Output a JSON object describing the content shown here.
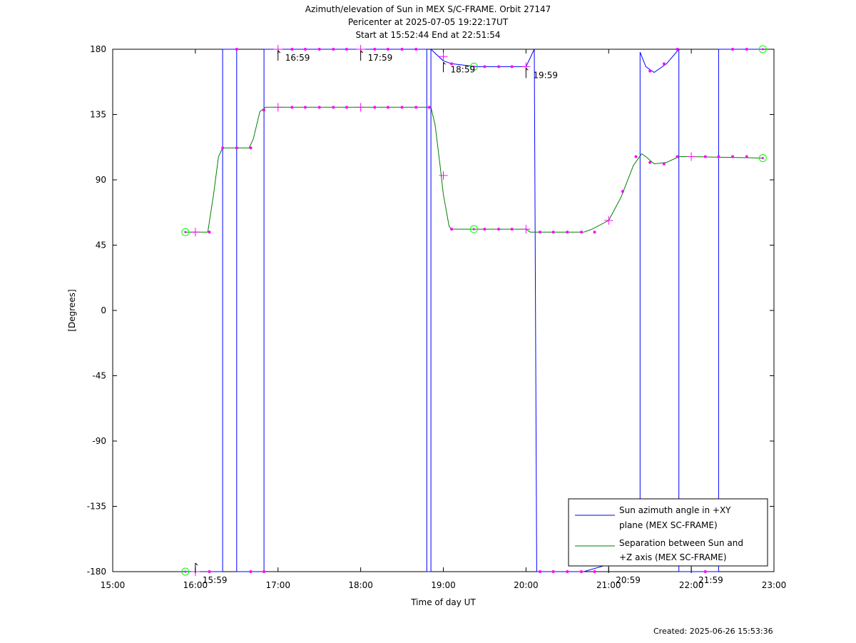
{
  "chart_data": {
    "type": "line",
    "title": "Azimuth/elevation of Sun in MEX S/C-FRAME.  Orbit 27147",
    "subtitle1": "Pericenter at 2025-07-05 19:22:17UT",
    "subtitle2": "Start at 15:52:44 End at 22:51:54",
    "xlabel": "Time of day UT",
    "ylabel": "[Degrees]",
    "xlim": [
      15.0,
      23.0
    ],
    "ylim": [
      -180,
      180
    ],
    "x_ticks": [
      15,
      16,
      17,
      18,
      19,
      20,
      21,
      22,
      23
    ],
    "x_tick_labels": [
      "15:00",
      "16:00",
      "17:00",
      "18:00",
      "19:00",
      "20:00",
      "21:00",
      "22:00",
      "23:00"
    ],
    "y_ticks": [
      180,
      135,
      90,
      45,
      0,
      -45,
      -90,
      -135,
      -180
    ],
    "y_tick_labels": [
      "180",
      "135",
      "90",
      "45",
      "0",
      "-45",
      "-90",
      "-135",
      "-180"
    ],
    "legend_position": "bottom-right",
    "grid": false,
    "series": [
      {
        "name": "Sun azimuth angle in +XY plane (MEX SC-FRAME)",
        "name_line1": "Sun azimuth angle in +XY",
        "name_line2": "plane (MEX SC-FRAME)",
        "color": "#0000ff",
        "points": [
          [
            15.879,
            -180
          ],
          [
            16.33,
            -180
          ],
          [
            16.33,
            180
          ],
          [
            16.5,
            180
          ],
          [
            16.5,
            -180
          ],
          [
            16.83,
            -180
          ],
          [
            16.83,
            180
          ],
          [
            18.8,
            180
          ],
          [
            18.8,
            -180
          ],
          [
            18.85,
            -180
          ],
          [
            18.85,
            180
          ],
          [
            19.0,
            172
          ],
          [
            19.1,
            170
          ],
          [
            19.4,
            168
          ],
          [
            20.0,
            168
          ],
          [
            20.1,
            180
          ],
          [
            20.13,
            -180
          ],
          [
            20.7,
            -180
          ],
          [
            21.0,
            -175
          ],
          [
            21.05,
            -173
          ],
          [
            21.38,
            -173
          ],
          [
            21.38,
            178
          ],
          [
            21.45,
            168
          ],
          [
            21.55,
            164
          ],
          [
            21.7,
            170
          ],
          [
            21.85,
            180
          ],
          [
            21.85,
            -180
          ],
          [
            22.33,
            -180
          ],
          [
            22.33,
            180
          ],
          [
            22.865,
            180
          ]
        ]
      },
      {
        "name": "Separation between Sun and +Z axis (MEX SC-FRAME)",
        "name_line1": "Separation between Sun and",
        "name_line2": "+Z axis (MEX SC-FRAME)",
        "color": "#008000",
        "points": [
          [
            15.879,
            54
          ],
          [
            16.15,
            54
          ],
          [
            16.22,
            80
          ],
          [
            16.28,
            106
          ],
          [
            16.33,
            112
          ],
          [
            16.45,
            112
          ],
          [
            16.65,
            112
          ],
          [
            16.7,
            118
          ],
          [
            16.78,
            137
          ],
          [
            16.85,
            140
          ],
          [
            18.85,
            140
          ],
          [
            18.9,
            128
          ],
          [
            18.96,
            100
          ],
          [
            19.0,
            80
          ],
          [
            19.07,
            58
          ],
          [
            19.1,
            56
          ],
          [
            20.0,
            56
          ],
          [
            20.05,
            54
          ],
          [
            20.7,
            54
          ],
          [
            20.8,
            56
          ],
          [
            21.0,
            62
          ],
          [
            21.15,
            78
          ],
          [
            21.3,
            100
          ],
          [
            21.4,
            108
          ],
          [
            21.45,
            106
          ],
          [
            21.55,
            101
          ],
          [
            21.7,
            102
          ],
          [
            21.85,
            106
          ],
          [
            22.0,
            106
          ],
          [
            22.865,
            105
          ]
        ]
      }
    ],
    "markers": {
      "color": "#ff00ff",
      "circle_color": "#00ff00",
      "circles": [
        [
          15.879,
          54
        ],
        [
          15.879,
          -180
        ],
        [
          19.37,
          168
        ],
        [
          19.37,
          56
        ],
        [
          22.865,
          180
        ],
        [
          22.865,
          105
        ]
      ],
      "crosses": [
        [
          16.0,
          54
        ],
        [
          16.0,
          -180
        ],
        [
          17.0,
          180
        ],
        [
          17.0,
          140
        ],
        [
          18.0,
          180
        ],
        [
          18.0,
          140
        ],
        [
          19.0,
          175
        ],
        [
          19.0,
          93
        ],
        [
          20.0,
          168
        ],
        [
          20.0,
          56
        ],
        [
          21.0,
          62
        ],
        [
          22.0,
          106
        ]
      ],
      "dots": [
        [
          16.17,
          54
        ],
        [
          16.33,
          112
        ],
        [
          16.5,
          112
        ],
        [
          16.67,
          112
        ],
        [
          16.83,
          138
        ],
        [
          17.17,
          140
        ],
        [
          17.33,
          140
        ],
        [
          17.5,
          140
        ],
        [
          17.67,
          140
        ],
        [
          17.83,
          140
        ],
        [
          18.17,
          140
        ],
        [
          18.33,
          140
        ],
        [
          18.5,
          140
        ],
        [
          18.67,
          140
        ],
        [
          18.83,
          140
        ],
        [
          19.1,
          56
        ],
        [
          19.5,
          56
        ],
        [
          19.67,
          56
        ],
        [
          19.83,
          56
        ],
        [
          20.17,
          54
        ],
        [
          20.33,
          54
        ],
        [
          20.5,
          54
        ],
        [
          20.67,
          54
        ],
        [
          20.83,
          54
        ],
        [
          21.17,
          82
        ],
        [
          21.33,
          106
        ],
        [
          21.5,
          102
        ],
        [
          21.67,
          101
        ],
        [
          21.83,
          106
        ],
        [
          22.17,
          106
        ],
        [
          22.33,
          106
        ],
        [
          22.5,
          106
        ],
        [
          22.67,
          106
        ],
        [
          16.17,
          -180
        ],
        [
          16.5,
          180
        ],
        [
          16.67,
          -180
        ],
        [
          16.83,
          -180
        ],
        [
          17.17,
          180
        ],
        [
          17.33,
          180
        ],
        [
          17.5,
          180
        ],
        [
          17.67,
          180
        ],
        [
          17.83,
          180
        ],
        [
          18.17,
          180
        ],
        [
          18.33,
          180
        ],
        [
          18.5,
          180
        ],
        [
          18.67,
          180
        ],
        [
          19.1,
          170
        ],
        [
          19.5,
          168
        ],
        [
          19.67,
          168
        ],
        [
          19.83,
          168
        ],
        [
          20.17,
          -180
        ],
        [
          20.33,
          -180
        ],
        [
          20.5,
          -180
        ],
        [
          20.67,
          -180
        ],
        [
          20.83,
          -180
        ],
        [
          21.5,
          165
        ],
        [
          21.67,
          170
        ],
        [
          21.83,
          180
        ],
        [
          22.17,
          -180
        ],
        [
          22.5,
          180
        ],
        [
          22.67,
          180
        ]
      ]
    },
    "annotations": [
      {
        "text": "15:59",
        "x": 16.0,
        "y": -180
      },
      {
        "text": "16:59",
        "x": 17.0,
        "y": 180
      },
      {
        "text": "17:59",
        "x": 18.0,
        "y": 180
      },
      {
        "text": "18:59",
        "x": 19.0,
        "y": 172
      },
      {
        "text": "19:59",
        "x": 20.0,
        "y": 168
      },
      {
        "text": "20:59",
        "x": 21.0,
        "y": -180
      },
      {
        "text": "21:59",
        "x": 22.0,
        "y": -180
      }
    ]
  },
  "created": "Created: 2025-06-26 15:53:36"
}
